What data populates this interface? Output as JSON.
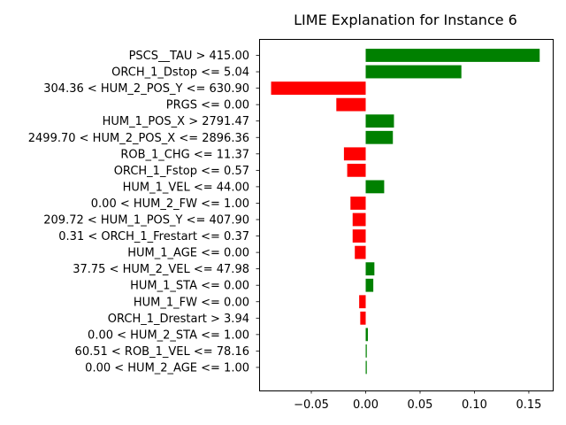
{
  "chart_data": {
    "type": "bar",
    "orientation": "horizontal",
    "title": "LIME Explanation for Instance 6",
    "xlabel": "",
    "ylabel": "",
    "xlim": [
      -0.098,
      0.172
    ],
    "grid": false,
    "x_ticks": [
      -0.05,
      0.0,
      0.05,
      0.1,
      0.15
    ],
    "x_tick_labels": [
      "−0.05",
      "0.00",
      "0.05",
      "0.10",
      "0.15"
    ],
    "categories": [
      "PSCS__TAU > 415.00",
      "ORCH_1_Dstop <= 5.04",
      "304.36 < HUM_2_POS_Y <= 630.90",
      "PRGS <= 0.00",
      "HUM_1_POS_X > 2791.47",
      "2499.70 < HUM_2_POS_X <= 2896.36",
      "ROB_1_CHG <= 11.37",
      "ORCH_1_Fstop <= 0.57",
      "HUM_1_VEL <= 44.00",
      "0.00 < HUM_2_FW <= 1.00",
      "209.72 < HUM_1_POS_Y <= 407.90",
      "0.31 < ORCH_1_Frestart <= 0.37",
      "HUM_1_AGE <= 0.00",
      "37.75 < HUM_2_VEL <= 47.98",
      "HUM_1_STA <= 0.00",
      "HUM_1_FW <= 0.00",
      "ORCH_1_Drestart > 3.94",
      "0.00 < HUM_2_STA <= 1.00",
      "60.51 < ROB_1_VEL <= 78.16",
      "0.00 < HUM_2_AGE <= 1.00"
    ],
    "values": [
      0.16,
      0.088,
      -0.087,
      -0.027,
      0.026,
      0.025,
      -0.02,
      -0.017,
      0.017,
      -0.014,
      -0.012,
      -0.012,
      -0.01,
      0.008,
      0.007,
      -0.006,
      -0.005,
      0.002,
      0.001,
      0.001
    ],
    "positive_color": "#008000",
    "negative_color": "#ff0000"
  }
}
